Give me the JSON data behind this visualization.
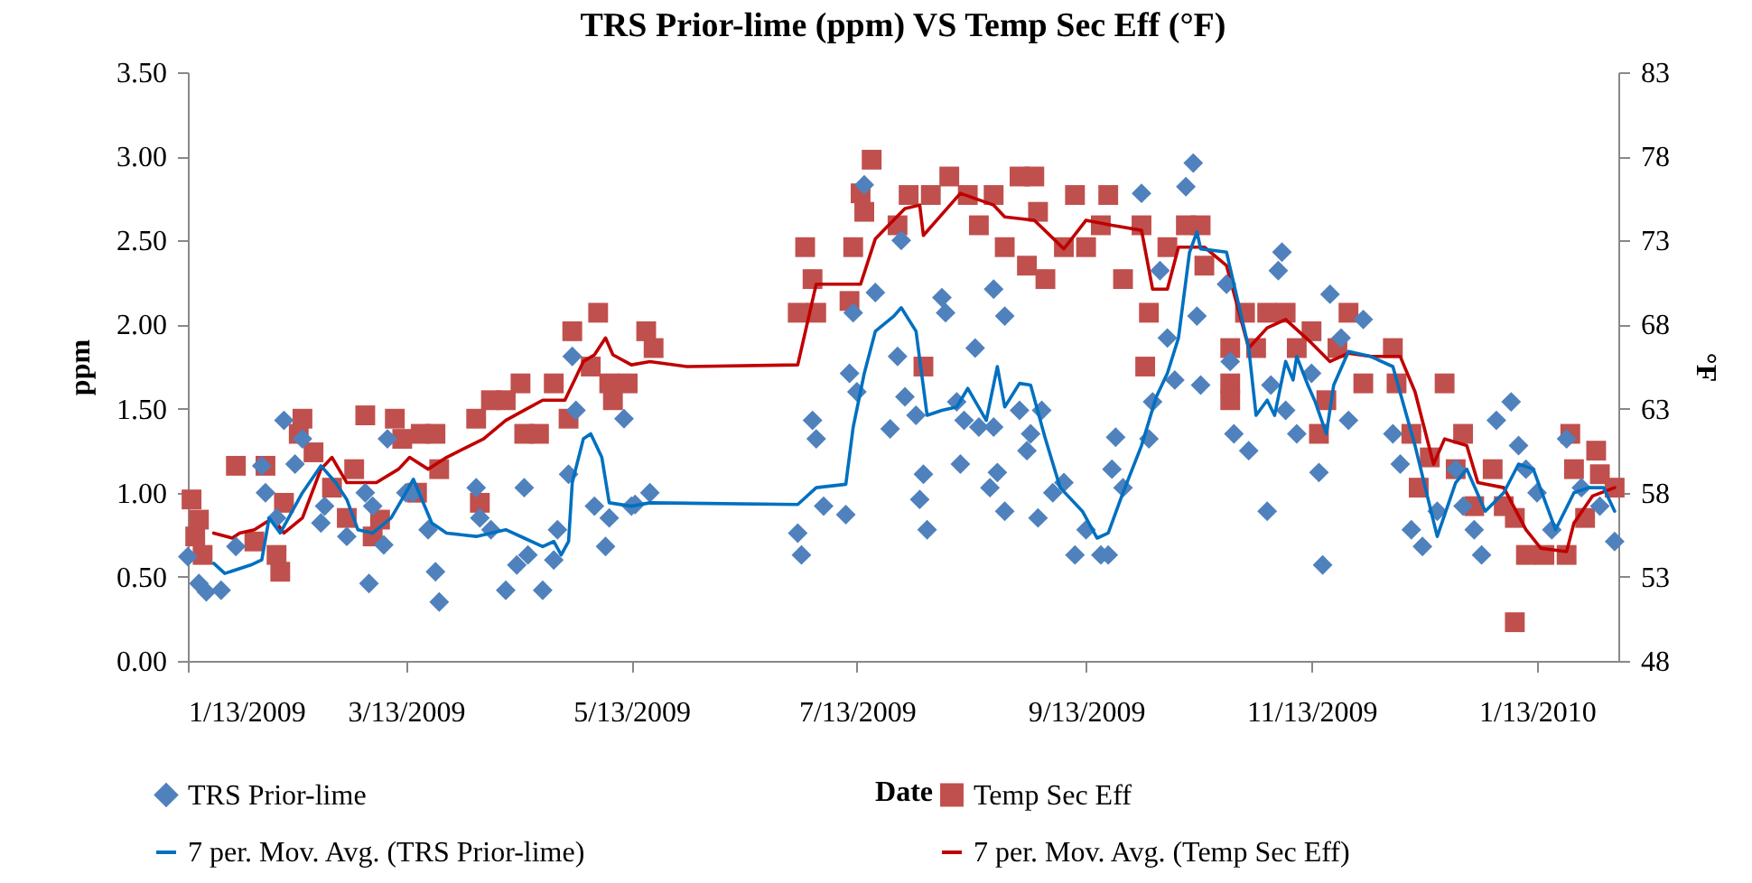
{
  "chart_data": {
    "type": "scatter",
    "title": "TRS Prior-lime (ppm) VS Temp Sec Eff (°F)",
    "xlabel": "Date",
    "ylabel": "ppm",
    "y2label": "°F",
    "xlim": [
      "2009-01-13",
      "2010-02-04"
    ],
    "xticks": [
      {
        "value": "2009-01-13",
        "label": "1/13/2009"
      },
      {
        "value": "2009-03-13",
        "label": "3/13/2009"
      },
      {
        "value": "2009-05-13",
        "label": "5/13/2009"
      },
      {
        "value": "2009-07-13",
        "label": "7/13/2009"
      },
      {
        "value": "2009-09-13",
        "label": "9/13/2009"
      },
      {
        "value": "2009-11-13",
        "label": "11/13/2009"
      },
      {
        "value": "2010-01-13",
        "label": "1/13/2010"
      }
    ],
    "ylim": [
      0,
      3.5
    ],
    "yticks": [
      {
        "value": 0,
        "label": "0.00"
      },
      {
        "value": 0.5,
        "label": "0.50"
      },
      {
        "value": 1,
        "label": "1.00"
      },
      {
        "value": 1.5,
        "label": "1.50"
      },
      {
        "value": 2,
        "label": "2.00"
      },
      {
        "value": 2.5,
        "label": "2.50"
      },
      {
        "value": 3,
        "label": "3.00"
      },
      {
        "value": 3.5,
        "label": "3.50"
      }
    ],
    "y2lim": [
      48,
      83
    ],
    "y2ticks": [
      48,
      53,
      58,
      63,
      68,
      73,
      78,
      83
    ],
    "legend": "bottom",
    "line_style": "solid",
    "series": [
      {
        "name": "TRS Prior-lime",
        "marker": "diamond",
        "color": "#4f81bd",
        "x": [
          "2009-01-13",
          "2009-01-16",
          "2009-01-18",
          "2009-01-22",
          "2009-01-26",
          "2009-02-02",
          "2009-02-03",
          "2009-02-06",
          "2009-02-08",
          "2009-02-11",
          "2009-02-13",
          "2009-02-18",
          "2009-02-19",
          "2009-02-25",
          "2009-03-02",
          "2009-03-03",
          "2009-03-04",
          "2009-03-07",
          "2009-03-08",
          "2009-03-13",
          "2009-03-15",
          "2009-03-19",
          "2009-03-21",
          "2009-03-22",
          "2009-04-01",
          "2009-04-02",
          "2009-04-05",
          "2009-04-09",
          "2009-04-12",
          "2009-04-14",
          "2009-04-15",
          "2009-04-19",
          "2009-04-22",
          "2009-04-23",
          "2009-04-26",
          "2009-04-27",
          "2009-04-28",
          "2009-05-03",
          "2009-05-06",
          "2009-05-07",
          "2009-05-11",
          "2009-05-13",
          "2009-05-14",
          "2009-05-18",
          "2009-06-27",
          "2009-06-28",
          "2009-07-01",
          "2009-07-02",
          "2009-07-04",
          "2009-07-10",
          "2009-07-11",
          "2009-07-12",
          "2009-07-13",
          "2009-07-15",
          "2009-07-18",
          "2009-07-22",
          "2009-07-24",
          "2009-07-25",
          "2009-07-26",
          "2009-07-29",
          "2009-07-30",
          "2009-07-31",
          "2009-08-01",
          "2009-08-05",
          "2009-08-06",
          "2009-08-09",
          "2009-08-10",
          "2009-08-11",
          "2009-08-14",
          "2009-08-15",
          "2009-08-18",
          "2009-08-19",
          "2009-08-19",
          "2009-08-20",
          "2009-08-22",
          "2009-08-22",
          "2009-08-26",
          "2009-08-28",
          "2009-08-29",
          "2009-08-31",
          "2009-09-01",
          "2009-09-04",
          "2009-09-07",
          "2009-09-10",
          "2009-09-13",
          "2009-09-17",
          "2009-09-19",
          "2009-09-20",
          "2009-09-21",
          "2009-09-23",
          "2009-09-28",
          "2009-09-30",
          "2009-10-01",
          "2009-10-03",
          "2009-10-05",
          "2009-10-07",
          "2009-10-10",
          "2009-10-12",
          "2009-10-13",
          "2009-10-14",
          "2009-10-21",
          "2009-10-22",
          "2009-10-23",
          "2009-10-27",
          "2009-11-01",
          "2009-11-02",
          "2009-11-04",
          "2009-11-05",
          "2009-11-06",
          "2009-11-09",
          "2009-11-13",
          "2009-11-15",
          "2009-11-16",
          "2009-11-18",
          "2009-11-21",
          "2009-11-23",
          "2009-11-27",
          "2009-12-05",
          "2009-12-07",
          "2009-12-10",
          "2009-12-13",
          "2009-12-17",
          "2009-12-22",
          "2009-12-24",
          "2009-12-27",
          "2009-12-29",
          "2010-01-02",
          "2010-01-06",
          "2010-01-08",
          "2010-01-10",
          "2010-01-13",
          "2010-01-17",
          "2010-01-21",
          "2010-01-25",
          "2010-01-30",
          "2010-02-03"
        ],
        "values": [
          0.62,
          0.46,
          0.41,
          0.42,
          0.68,
          1.16,
          1.0,
          0.85,
          1.43,
          1.17,
          1.32,
          0.82,
          0.92,
          0.74,
          1.0,
          0.46,
          0.92,
          0.69,
          1.32,
          1.0,
          1.0,
          0.78,
          0.53,
          0.35,
          1.03,
          0.85,
          0.78,
          0.42,
          0.57,
          1.03,
          0.63,
          0.42,
          0.6,
          0.78,
          1.11,
          1.81,
          1.49,
          0.92,
          0.68,
          0.85,
          1.44,
          0.92,
          0.93,
          1.0,
          0.76,
          0.63,
          1.43,
          1.32,
          0.92,
          0.87,
          1.71,
          2.07,
          1.6,
          2.83,
          2.19,
          1.38,
          1.81,
          2.5,
          1.57,
          1.46,
          0.96,
          1.11,
          0.78,
          2.16,
          2.07,
          1.54,
          1.17,
          1.43,
          1.86,
          1.39,
          1.03,
          1.39,
          2.21,
          1.12,
          2.05,
          0.89,
          1.49,
          1.25,
          1.35,
          0.85,
          1.49,
          1.0,
          1.06,
          0.63,
          0.78,
          0.63,
          0.63,
          1.14,
          1.33,
          1.03,
          2.78,
          1.32,
          1.54,
          2.32,
          1.92,
          1.67,
          2.82,
          2.96,
          2.05,
          1.64,
          2.24,
          1.78,
          1.35,
          1.25,
          0.89,
          1.64,
          2.32,
          2.43,
          1.49,
          1.35,
          1.71,
          1.12,
          0.57,
          2.18,
          1.92,
          1.43,
          2.03,
          1.35,
          1.17,
          0.78,
          0.68,
          0.89,
          1.14,
          0.92,
          0.78,
          0.63,
          1.43,
          1.54,
          1.28,
          1.14,
          1.0,
          0.78,
          1.32,
          1.03,
          0.92,
          0.71
        ]
      },
      {
        "name": "Temp Sec Eff",
        "marker": "square",
        "axis": "y2",
        "color": "#c0504d",
        "x": [
          "2009-01-14",
          "2009-01-15",
          "2009-01-16",
          "2009-01-17",
          "2009-01-26",
          "2009-01-31",
          "2009-02-03",
          "2009-02-06",
          "2009-02-07",
          "2009-02-08",
          "2009-02-12",
          "2009-02-13",
          "2009-02-16",
          "2009-02-21",
          "2009-02-25",
          "2009-02-27",
          "2009-03-02",
          "2009-03-04",
          "2009-03-06",
          "2009-03-10",
          "2009-03-12",
          "2009-03-16",
          "2009-03-17",
          "2009-03-21",
          "2009-03-22",
          "2009-04-01",
          "2009-04-02",
          "2009-04-05",
          "2009-04-09",
          "2009-04-13",
          "2009-04-14",
          "2009-04-18",
          "2009-04-22",
          "2009-04-26",
          "2009-04-27",
          "2009-05-02",
          "2009-05-04",
          "2009-05-07",
          "2009-05-08",
          "2009-05-12",
          "2009-05-17",
          "2009-05-19",
          "2009-06-27",
          "2009-06-29",
          "2009-07-01",
          "2009-07-02",
          "2009-07-11",
          "2009-07-12",
          "2009-07-14",
          "2009-07-15",
          "2009-07-17",
          "2009-07-24",
          "2009-07-27",
          "2009-07-31",
          "2009-08-02",
          "2009-08-07",
          "2009-08-12",
          "2009-08-15",
          "2009-08-19",
          "2009-08-22",
          "2009-08-26",
          "2009-08-28",
          "2009-08-30",
          "2009-08-31",
          "2009-09-02",
          "2009-09-07",
          "2009-09-10",
          "2009-09-13",
          "2009-09-17",
          "2009-09-19",
          "2009-09-23",
          "2009-09-28",
          "2009-09-29",
          "2009-09-30",
          "2009-10-05",
          "2009-10-10",
          "2009-10-14",
          "2009-10-15",
          "2009-10-22",
          "2009-10-22",
          "2009-10-22",
          "2009-10-26",
          "2009-10-29",
          "2009-11-01",
          "2009-11-06",
          "2009-11-09",
          "2009-11-13",
          "2009-11-15",
          "2009-11-17",
          "2009-11-20",
          "2009-11-23",
          "2009-11-27",
          "2009-12-05",
          "2009-12-06",
          "2009-12-10",
          "2009-12-12",
          "2009-12-15",
          "2009-12-19",
          "2009-12-22",
          "2009-12-24",
          "2009-12-27",
          "2010-01-01",
          "2010-01-04",
          "2010-01-07",
          "2010-01-07",
          "2010-01-10",
          "2010-01-15",
          "2010-01-21",
          "2010-01-22",
          "2010-01-23",
          "2010-01-26",
          "2010-01-29",
          "2010-01-30",
          "2010-02-03"
        ],
        "values": [
          57.6,
          55.4,
          56.4,
          54.3,
          59.6,
          55.1,
          59.6,
          54.3,
          53.3,
          57.4,
          61.5,
          62.4,
          60.4,
          58.3,
          56.5,
          59.4,
          62.6,
          55.4,
          56.4,
          62.4,
          61.2,
          58.0,
          61.5,
          61.5,
          59.4,
          62.4,
          57.4,
          63.5,
          63.5,
          64.5,
          61.5,
          61.5,
          64.5,
          62.4,
          67.6,
          65.5,
          68.7,
          64.5,
          63.5,
          64.5,
          67.6,
          66.6,
          68.7,
          72.6,
          70.7,
          68.7,
          69.4,
          72.6,
          75.8,
          74.7,
          77.8,
          73.9,
          75.7,
          65.5,
          75.7,
          76.8,
          75.7,
          73.9,
          75.7,
          72.6,
          76.8,
          71.5,
          76.8,
          74.7,
          70.7,
          72.6,
          75.7,
          72.6,
          73.9,
          75.7,
          70.7,
          73.9,
          65.5,
          68.7,
          72.6,
          73.9,
          73.9,
          71.5,
          66.6,
          64.5,
          63.5,
          68.7,
          66.6,
          68.7,
          68.7,
          66.6,
          67.6,
          61.5,
          63.5,
          66.6,
          68.7,
          64.5,
          66.6,
          64.5,
          61.5,
          58.3,
          60.1,
          64.5,
          59.4,
          61.5,
          57.2,
          59.4,
          57.2,
          56.5,
          50.3,
          54.3,
          54.3,
          54.3,
          61.5,
          59.4,
          56.5,
          60.5,
          59.1,
          58.3
        ]
      },
      {
        "name": "7 per. Mov. Avg. (TRS Prior-lime)",
        "type": "line",
        "color": "#0070c0",
        "x": [
          "2009-01-20",
          "2009-01-23",
          "2009-01-30",
          "2009-02-02",
          "2009-02-04",
          "2009-02-07",
          "2009-02-13",
          "2009-02-18",
          "2009-02-22",
          "2009-02-25",
          "2009-02-28",
          "2009-03-04",
          "2009-03-09",
          "2009-03-13",
          "2009-03-15",
          "2009-03-20",
          "2009-03-24",
          "2009-04-01",
          "2009-04-05",
          "2009-04-09",
          "2009-04-14",
          "2009-04-19",
          "2009-04-22",
          "2009-04-24",
          "2009-04-26",
          "2009-04-27",
          "2009-04-30",
          "2009-05-02",
          "2009-05-05",
          "2009-05-07",
          "2009-05-13",
          "2009-05-18",
          "2009-06-27",
          "2009-07-02",
          "2009-07-10",
          "2009-07-12",
          "2009-07-15",
          "2009-07-18",
          "2009-07-23",
          "2009-07-25",
          "2009-07-29",
          "2009-08-01",
          "2009-08-05",
          "2009-08-09",
          "2009-08-12",
          "2009-08-17",
          "2009-08-20",
          "2009-08-22",
          "2009-08-26",
          "2009-08-29",
          "2009-09-02",
          "2009-09-06",
          "2009-09-12",
          "2009-09-16",
          "2009-09-19",
          "2009-09-23",
          "2009-09-28",
          "2009-10-02",
          "2009-10-05",
          "2009-10-08",
          "2009-10-11",
          "2009-10-13",
          "2009-10-14",
          "2009-10-21",
          "2009-10-27",
          "2009-10-29",
          "2009-11-01",
          "2009-11-03",
          "2009-11-06",
          "2009-11-08",
          "2009-11-09",
          "2009-11-12",
          "2009-11-14",
          "2009-11-17",
          "2009-11-19",
          "2009-11-23",
          "2009-11-29",
          "2009-12-05",
          "2009-12-11",
          "2009-12-17",
          "2009-12-22",
          "2009-12-25",
          "2009-12-30",
          "2010-01-04",
          "2010-01-08",
          "2010-01-12",
          "2010-01-18",
          "2010-01-23",
          "2010-01-27",
          "2010-01-31",
          "2010-02-03"
        ],
        "values": [
          0.58,
          0.52,
          0.57,
          0.6,
          0.85,
          0.76,
          1.0,
          1.16,
          1.06,
          0.96,
          0.78,
          0.76,
          0.85,
          1.0,
          1.08,
          0.82,
          0.76,
          0.74,
          0.76,
          0.78,
          0.73,
          0.68,
          0.71,
          0.63,
          0.71,
          1.06,
          1.32,
          1.35,
          1.21,
          0.94,
          0.92,
          0.94,
          0.93,
          1.03,
          1.05,
          1.39,
          1.71,
          1.96,
          2.05,
          2.1,
          1.96,
          1.46,
          1.49,
          1.51,
          1.62,
          1.43,
          1.75,
          1.51,
          1.65,
          1.64,
          1.32,
          1.03,
          0.89,
          0.73,
          0.76,
          1.0,
          1.28,
          1.57,
          1.71,
          1.92,
          2.43,
          2.55,
          2.45,
          2.43,
          1.86,
          1.46,
          1.55,
          1.46,
          1.78,
          1.67,
          1.81,
          1.64,
          1.54,
          1.35,
          1.64,
          1.84,
          1.81,
          1.75,
          1.28,
          0.74,
          1.06,
          1.14,
          0.89,
          1.0,
          1.17,
          1.14,
          0.78,
          1.0,
          1.03,
          1.03,
          0.89
        ]
      },
      {
        "name": "7 per. Mov. Avg. (Temp Sec Eff)",
        "type": "line",
        "axis": "y2",
        "color": "#c00000",
        "x": [
          "2009-01-20",
          "2009-01-25",
          "2009-01-27",
          "2009-01-31",
          "2009-02-05",
          "2009-02-08",
          "2009-02-13",
          "2009-02-18",
          "2009-02-21",
          "2009-02-25",
          "2009-03-01",
          "2009-03-05",
          "2009-03-11",
          "2009-03-14",
          "2009-03-19",
          "2009-03-24",
          "2009-04-03",
          "2009-04-09",
          "2009-04-14",
          "2009-04-19",
          "2009-04-25",
          "2009-04-30",
          "2009-05-03",
          "2009-05-06",
          "2009-05-08",
          "2009-05-13",
          "2009-05-18",
          "2009-05-28",
          "2009-06-27",
          "2009-07-02",
          "2009-07-14",
          "2009-07-18",
          "2009-07-26",
          "2009-07-30",
          "2009-07-31",
          "2009-08-10",
          "2009-08-19",
          "2009-08-22",
          "2009-08-30",
          "2009-09-07",
          "2009-09-13",
          "2009-09-20",
          "2009-09-28",
          "2009-10-01",
          "2009-10-05",
          "2009-10-08",
          "2009-10-15",
          "2009-10-21",
          "2009-10-27",
          "2009-11-01",
          "2009-11-06",
          "2009-11-13",
          "2009-11-18",
          "2009-11-23",
          "2009-11-29",
          "2009-12-07",
          "2009-12-11",
          "2009-12-16",
          "2009-12-19",
          "2009-12-25",
          "2009-12-28",
          "2010-01-04",
          "2010-01-10",
          "2010-01-14",
          "2010-01-21",
          "2010-01-23",
          "2010-01-28",
          "2010-02-03"
        ],
        "values": [
          55.6,
          55.3,
          55.6,
          55.8,
          56.5,
          55.6,
          56.5,
          59.4,
          60.1,
          58.6,
          58.6,
          58.6,
          59.4,
          60.1,
          59.4,
          60.1,
          61.2,
          62.3,
          62.9,
          63.5,
          63.5,
          65.8,
          66.2,
          67.2,
          66.2,
          65.6,
          65.8,
          65.5,
          65.6,
          70.4,
          70.4,
          73.1,
          74.9,
          75.1,
          73.3,
          75.8,
          75.1,
          74.4,
          74.2,
          72.5,
          74.2,
          73.9,
          73.6,
          70.1,
          70.1,
          72.6,
          72.6,
          71.5,
          66.6,
          67.8,
          68.3,
          66.9,
          65.8,
          66.3,
          66.1,
          66.1,
          64.0,
          59.7,
          61.2,
          60.8,
          58.6,
          58.3,
          55.8,
          54.7,
          54.5,
          56.2,
          57.8,
          58.3
        ]
      }
    ]
  }
}
